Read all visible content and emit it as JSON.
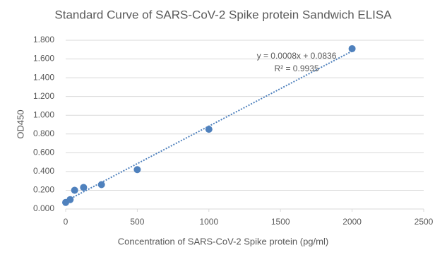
{
  "chart_data": {
    "type": "scatter",
    "title": "Standard Curve of SARS-CoV-2 Spike protein Sandwich ELISA",
    "x_label": "Concentration of SARS-CoV-2 Spike protein (pg/ml)",
    "y_label": "OD450",
    "x": [
      0,
      31.25,
      62.5,
      125,
      250,
      500,
      1000,
      2000
    ],
    "values": [
      0.07,
      0.1,
      0.2,
      0.23,
      0.26,
      0.42,
      0.85,
      1.71
    ],
    "color": "#4f81bd",
    "xlim": [
      0,
      2500
    ],
    "xticks": [
      0,
      500,
      1000,
      1500,
      2000,
      2500
    ],
    "ylim": [
      0,
      1.8
    ],
    "yticks": [
      {
        "value": 0,
        "label": "0.000"
      },
      {
        "value": 0.2,
        "label": "0.200"
      },
      {
        "value": 0.4,
        "label": "0.400"
      },
      {
        "value": 0.6,
        "label": "0.600"
      },
      {
        "value": 0.8,
        "label": "0.800"
      },
      {
        "value": 1.0,
        "label": "1.000"
      },
      {
        "value": 1.2,
        "label": "1.200"
      },
      {
        "value": 1.4,
        "label": "1.400"
      },
      {
        "value": 1.6,
        "label": "1.600"
      },
      {
        "value": 1.8,
        "label": "1.800"
      }
    ],
    "grid": true,
    "trendline": {
      "slope": 0.0008,
      "intercept": 0.0836,
      "equation": "y = 0.0008x + 0.0836",
      "r2": "R² = 0.9935"
    }
  }
}
